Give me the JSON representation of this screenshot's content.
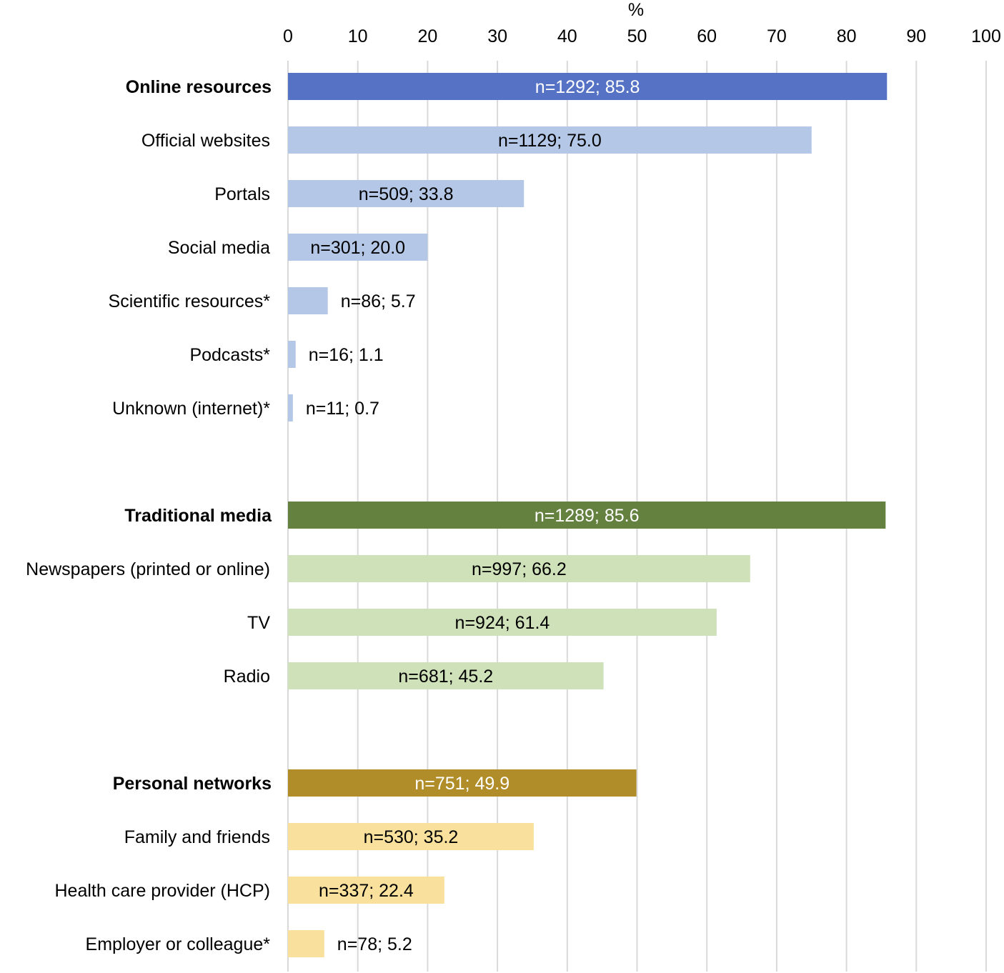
{
  "chart_data": {
    "type": "bar",
    "orientation": "horizontal",
    "title": "",
    "xlabel": "%",
    "ylabel": "",
    "xlim": [
      0,
      100
    ],
    "xticks": [
      0,
      10,
      20,
      30,
      40,
      50,
      60,
      70,
      80,
      90,
      100
    ],
    "grid": true,
    "groups": [
      {
        "name": "Online resources",
        "header": {
          "label": "Online resources",
          "value": 85.8,
          "data_label": "n=1292; 85.8"
        },
        "color_main": "#5572c4",
        "color_sub": "#b4c7e7",
        "items": [
          {
            "label": "Official websites",
            "value": 75.0,
            "data_label": "n=1129; 75.0"
          },
          {
            "label": "Portals",
            "value": 33.8,
            "data_label": "n=509; 33.8"
          },
          {
            "label": "Social media",
            "value": 20.0,
            "data_label": "n=301; 20.0"
          },
          {
            "label": "Scientific resources*",
            "value": 5.7,
            "data_label": "n=86; 5.7"
          },
          {
            "label": "Podcasts*",
            "value": 1.1,
            "data_label": "n=16; 1.1"
          },
          {
            "label": "Unknown (internet)*",
            "value": 0.7,
            "data_label": "n=11; 0.7"
          }
        ]
      },
      {
        "name": "Traditional media",
        "header": {
          "label": "Traditional media",
          "value": 85.6,
          "data_label": "n=1289; 85.6"
        },
        "color_main": "#648140",
        "color_sub": "#cfe1b9",
        "items": [
          {
            "label": "Newspapers (printed or online)",
            "value": 66.2,
            "data_label": "n=997; 66.2"
          },
          {
            "label": "TV",
            "value": 61.4,
            "data_label": "n=924; 61.4"
          },
          {
            "label": "Radio",
            "value": 45.2,
            "data_label": "n=681; 45.2"
          }
        ]
      },
      {
        "name": "Personal networks",
        "header": {
          "label": "Personal networks",
          "value": 49.9,
          "data_label": "n=751; 49.9"
        },
        "color_main": "#b08d28",
        "color_sub": "#f9e19d",
        "items": [
          {
            "label": "Family and friends",
            "value": 35.2,
            "data_label": "n=530; 35.2"
          },
          {
            "label": "Health care provider (HCP)",
            "value": 22.4,
            "data_label": "n=337; 22.4"
          },
          {
            "label": "Employer or colleague*",
            "value": 5.2,
            "data_label": "n=78; 5.2"
          }
        ]
      }
    ]
  }
}
